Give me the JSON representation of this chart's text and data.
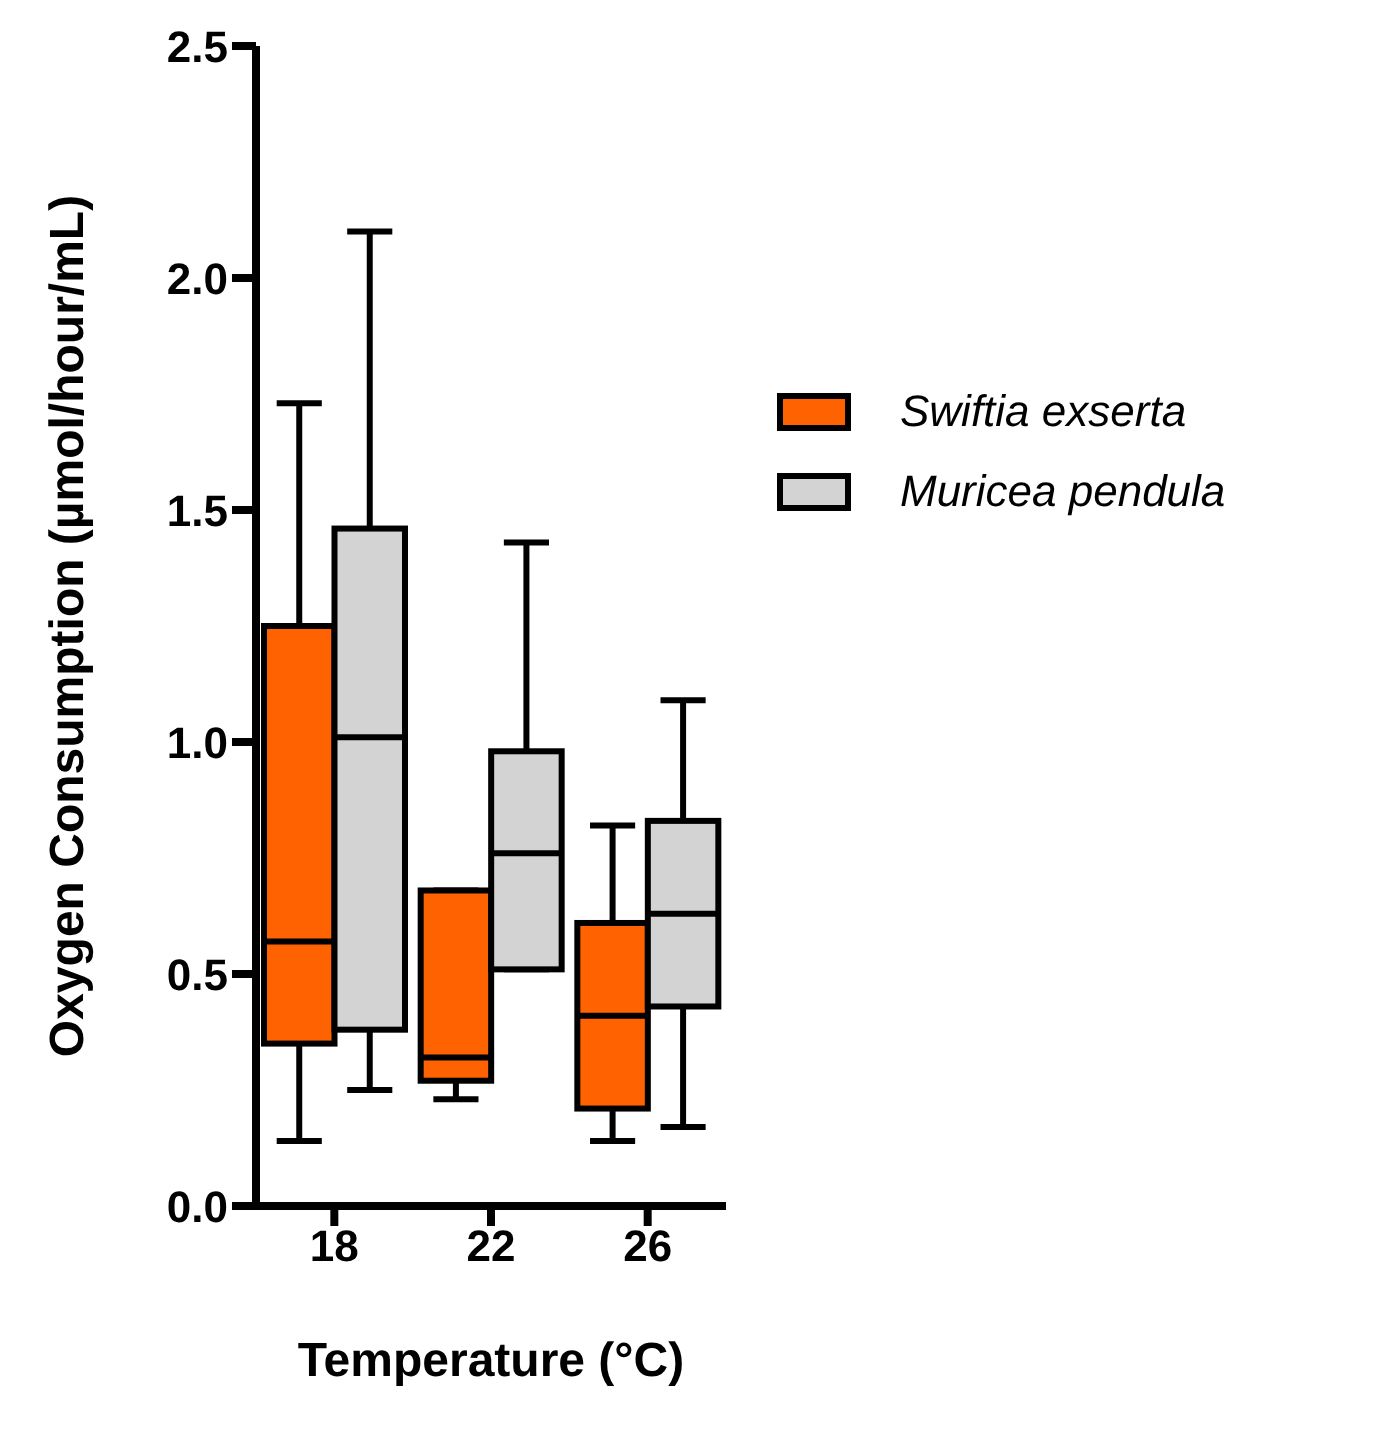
{
  "chart_data": {
    "type": "box",
    "xlabel": "Temperature (°C)",
    "ylabel": "Oxygen Consumption (µmol/hour/mL)",
    "categories": [
      "18",
      "22",
      "26"
    ],
    "ylim": [
      0,
      2.5
    ],
    "yticks": [
      {
        "value": 0,
        "label": "0.0"
      },
      {
        "value": 0.5,
        "label": "0.5"
      },
      {
        "value": 1,
        "label": "1.0"
      },
      {
        "value": 1.5,
        "label": "1.5"
      },
      {
        "value": 2,
        "label": "2.0"
      },
      {
        "value": 2.5,
        "label": "2.5"
      }
    ],
    "legend": "top right",
    "grid": false,
    "series": [
      {
        "name": "Swiftia exserta",
        "color": "#ff6200",
        "boxes": [
          {
            "low": 0.14,
            "q1": 0.35,
            "median": 0.57,
            "q3": 1.25,
            "high": 1.73
          },
          {
            "low": 0.23,
            "q1": 0.27,
            "median": 0.32,
            "q3": 0.68,
            "high": 0.68
          },
          {
            "low": 0.14,
            "q1": 0.21,
            "median": 0.41,
            "q3": 0.61,
            "high": 0.82
          }
        ]
      },
      {
        "name": "Muricea pendula",
        "color": "#d3d3d3",
        "boxes": [
          {
            "low": 0.25,
            "q1": 0.38,
            "median": 1.01,
            "q3": 1.46,
            "high": 2.1
          },
          {
            "low": 0.51,
            "q1": 0.51,
            "median": 0.76,
            "q3": 0.98,
            "high": 1.43
          },
          {
            "low": 0.17,
            "q1": 0.43,
            "median": 0.63,
            "q3": 0.83,
            "high": 1.09
          }
        ]
      }
    ]
  }
}
